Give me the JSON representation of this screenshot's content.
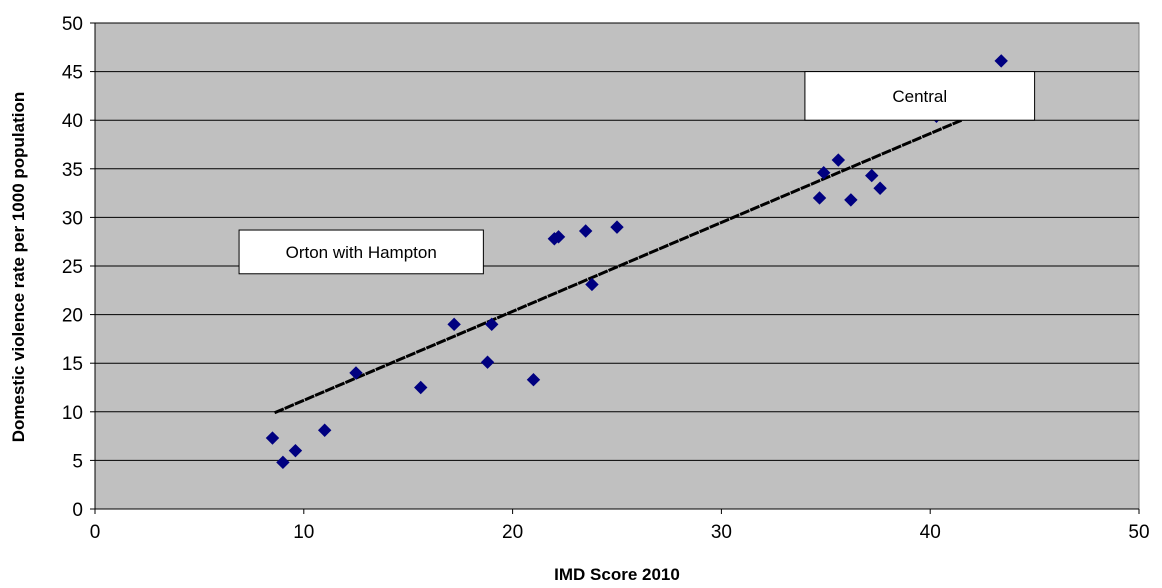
{
  "chart_data": {
    "type": "scatter",
    "title": "",
    "xlabel": "IMD Score 2010",
    "ylabel": "Domestic violence rate per 1000 population",
    "xlim": [
      0,
      50
    ],
    "ylim": [
      0,
      50
    ],
    "x_ticks": [
      0,
      10,
      20,
      30,
      40,
      50
    ],
    "y_ticks": [
      0,
      5,
      10,
      15,
      20,
      25,
      30,
      35,
      40,
      45,
      50
    ],
    "grid": "horizontal",
    "colors": {
      "plot_background": "#c0c0c0",
      "marker": "#000080",
      "trendline": "#000000",
      "gridline": "#000000"
    },
    "series": [
      {
        "values": [
          {
            "x": 8.5,
            "y": 7.3
          },
          {
            "x": 9.0,
            "y": 4.8
          },
          {
            "x": 9.6,
            "y": 6.0
          },
          {
            "x": 11.0,
            "y": 8.1
          },
          {
            "x": 12.5,
            "y": 14.0
          },
          {
            "x": 15.6,
            "y": 12.5
          },
          {
            "x": 17.2,
            "y": 19.0
          },
          {
            "x": 18.8,
            "y": 15.1
          },
          {
            "x": 19.0,
            "y": 19.0
          },
          {
            "x": 21.0,
            "y": 13.3
          },
          {
            "x": 22.0,
            "y": 27.8
          },
          {
            "x": 22.2,
            "y": 28.0
          },
          {
            "x": 23.5,
            "y": 28.6
          },
          {
            "x": 23.8,
            "y": 23.1
          },
          {
            "x": 25.0,
            "y": 29.0
          },
          {
            "x": 34.7,
            "y": 32.0
          },
          {
            "x": 34.9,
            "y": 34.6
          },
          {
            "x": 35.6,
            "y": 35.9
          },
          {
            "x": 36.2,
            "y": 31.8
          },
          {
            "x": 37.2,
            "y": 34.3
          },
          {
            "x": 37.6,
            "y": 33.0
          },
          {
            "x": 40.3,
            "y": 40.4
          },
          {
            "x": 43.4,
            "y": 46.1
          }
        ]
      }
    ],
    "trendline": {
      "x": [
        8.6,
        41.5
      ],
      "y": [
        9.9,
        40.0
      ]
    },
    "annotations": [
      {
        "text": "Central",
        "x_range": [
          34.0,
          45.0
        ],
        "y_range": [
          40.0,
          45.0
        ]
      },
      {
        "text": "Orton with Hampton",
        "x_range": [
          6.9,
          18.6
        ],
        "y_range": [
          24.2,
          28.7
        ]
      }
    ]
  }
}
